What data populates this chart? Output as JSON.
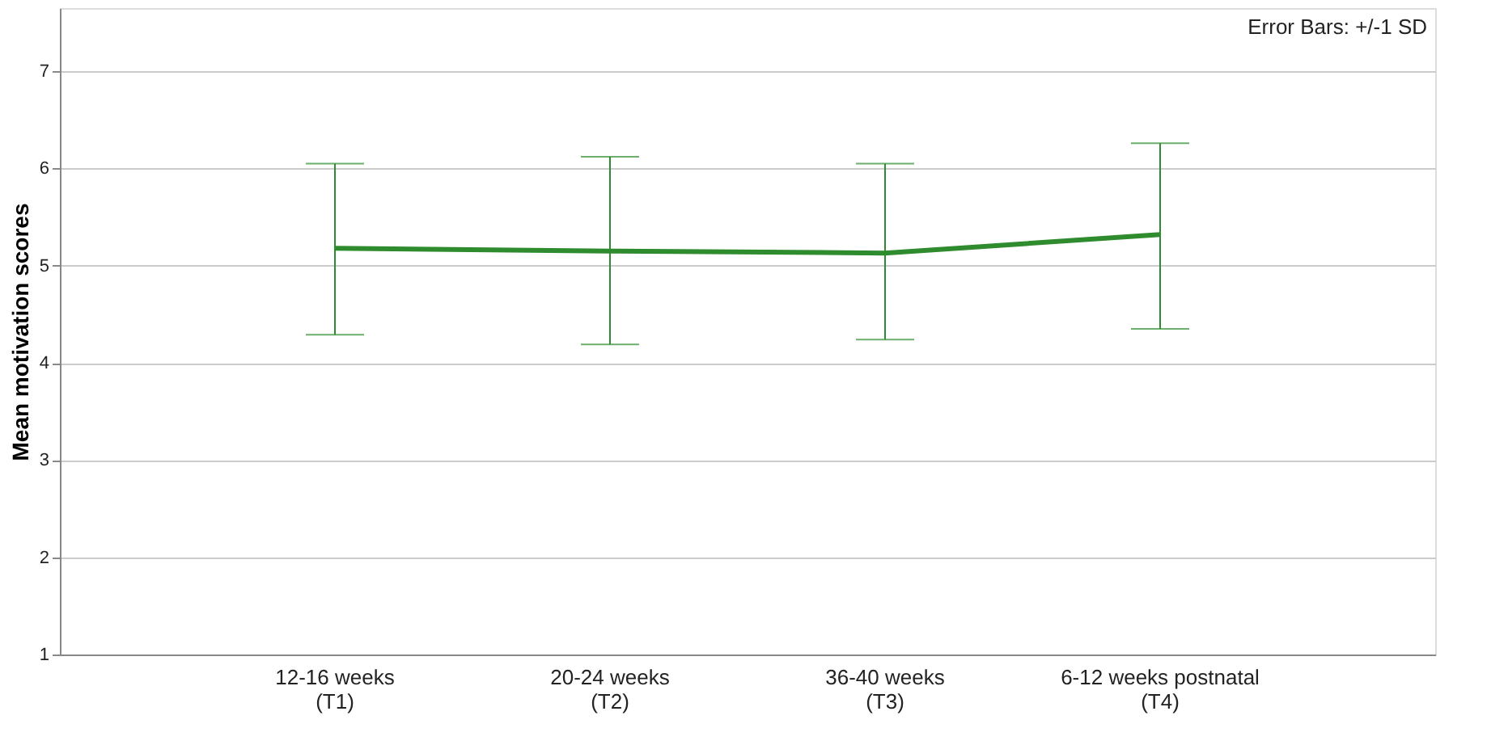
{
  "chart_data": {
    "type": "line",
    "ylabel": "Mean motivation scores",
    "categories": [
      "12-16 weeks\n(T1)",
      "20-24 weeks\n(T2)",
      "36-40 weeks\n(T3)",
      "6-12 weeks postnatal\n(T4)"
    ],
    "series": [
      {
        "color": "#2e8b2e",
        "values": [
          5.18,
          5.15,
          5.13,
          5.32
        ],
        "errors": [
          [
            4.29,
            6.05
          ],
          [
            4.19,
            6.12
          ],
          [
            4.24,
            6.05
          ],
          [
            4.35,
            6.26
          ]
        ]
      }
    ],
    "ylim": [
      1,
      7.65
    ],
    "yticks": [
      1,
      2,
      3,
      4,
      5,
      6,
      7
    ],
    "grid": "y",
    "marker": "none",
    "line_style": "solid",
    "annotations": [
      "Error Bars: +/-1 SD"
    ]
  }
}
